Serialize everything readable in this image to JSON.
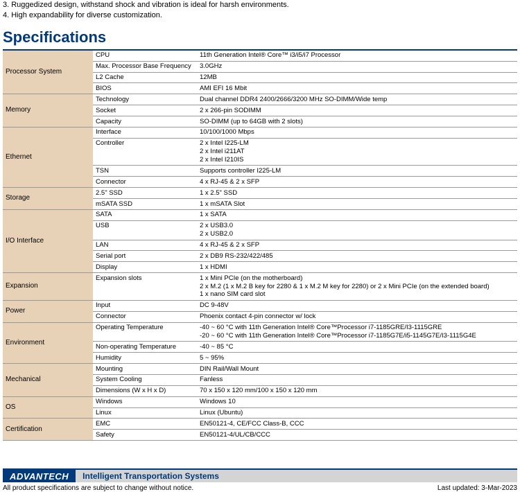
{
  "intro": {
    "line2": "3. Ruggedized design, withstand shock and vibration is ideal for harsh environments.",
    "line3": "4. High expandability for diverse customization."
  },
  "heading": "Specifications",
  "rows": [
    {
      "cat": "Processor System",
      "rs": 4,
      "attr": "CPU",
      "val": "11th Generation Intel® Core™ i3/i5/i7 Processor",
      "top": true
    },
    {
      "attr": "Max. Processor Base Frequency",
      "val": "3.0GHz"
    },
    {
      "attr": "L2 Cache",
      "val": "12MB"
    },
    {
      "attr": "BIOS",
      "val": "AMI EFI 16 Mbit"
    },
    {
      "cat": "Memory",
      "rs": 3,
      "attr": "Technology",
      "val": "Dual channel DDR4 2400/2666/3200 MHz SO-DIMM/Wide temp"
    },
    {
      "attr": "Socket",
      "val": "2 x 266-pin SODIMM"
    },
    {
      "attr": "Capacity",
      "val": "SO-DIMM (up to 64GB with 2 slots)"
    },
    {
      "cat": "Ethernet",
      "rs": 4,
      "attr": "Interface",
      "val": "10/100/1000 Mbps"
    },
    {
      "attr": "Controller",
      "val": "2 x Intel  I225-LM\n2 x Intel  i211AT\n2 x Intel  I210IS"
    },
    {
      "attr": "TSN",
      "val": "Supports controller I225-LM"
    },
    {
      "attr": "Connector",
      "val": "4 x RJ-45 & 2 x SFP"
    },
    {
      "cat": "Storage",
      "rs": 2,
      "attr": "2.5\" SSD",
      "val": "1 x 2.5\" SSD"
    },
    {
      "attr": "mSATA  SSD",
      "val": "1 x mSATA Slot"
    },
    {
      "cat": "I/O Interface",
      "rs": 5,
      "attr": "SATA",
      "val": "1 x SATA"
    },
    {
      "attr": "USB",
      "val": "2 x USB3.0\n2 x USB2.0"
    },
    {
      "attr": "LAN",
      "val": "4 x RJ-45 & 2 x SFP"
    },
    {
      "attr": "Serial port",
      "val": "2 x DB9 RS-232/422/485"
    },
    {
      "attr": "Display",
      "val": "1 x HDMI"
    },
    {
      "cat": "Expansion",
      "rs": 1,
      "attr": "Expansion slots",
      "val": "1 x Mini PCIe (on the motherboard)\n2 x M.2 (1 x M.2 B key for 2280 & 1 x M.2 M key for 2280) or 2  x Mini PCIe (on the extended board)\n1 x nano SIM card slot"
    },
    {
      "cat": "Power",
      "rs": 2,
      "attr": "Input",
      "val": "DC 9-48V"
    },
    {
      "attr": "Connector",
      "val": "Phoenix contact 4-pin connector w/ lock"
    },
    {
      "cat": "Environment",
      "rs": 3,
      "attr": "Operating Temperature",
      "val": "-40 ~ 60 °C with 11th Generation Intel® Core™Processor i7-1185GRE/I3-1115GRE\n-20 ~ 60 °C with 11th Generation Intel® Core™Processor i7-1185G7E/i5-1145G7E/I3-1115G4E"
    },
    {
      "attr": "Non-operating Temperature",
      "val": "-40 ~ 85 °C"
    },
    {
      "attr": "Humidity",
      "val": "5 ~ 95%"
    },
    {
      "cat": "Mechanical",
      "rs": 3,
      "attr": "Mounting",
      "val": "DIN Rail/Wall Mount"
    },
    {
      "attr": "System Cooling",
      "val": "Fanless"
    },
    {
      "attr": "Dimensions (W x H x D)",
      "val": "70 x 150 x 120 mm/100 x 150 x 120 mm"
    },
    {
      "cat": "OS",
      "rs": 2,
      "attr": "Windows",
      "val": "Windows 10"
    },
    {
      "attr": "Linux",
      "val": "Linux (Ubuntu)"
    },
    {
      "cat": "Certification",
      "rs": 2,
      "attr": "EMC",
      "val": "EN50121-4, CE/FCC Class-B, CCC"
    },
    {
      "attr": "Safety",
      "val": "EN50121-4/UL/CB/CCC"
    }
  ],
  "footer": {
    "logo": "ADVANTECH",
    "slogan": "Intelligent Transportation Systems",
    "disclaimer": "All product specifications are subject to change without notice.",
    "updated": "Last updated: 3-Mar-2023"
  },
  "colors": {
    "brand_blue": "#003a7a",
    "category_bg": "#e7d2b8",
    "slogan_bg": "#d4d4d4"
  }
}
